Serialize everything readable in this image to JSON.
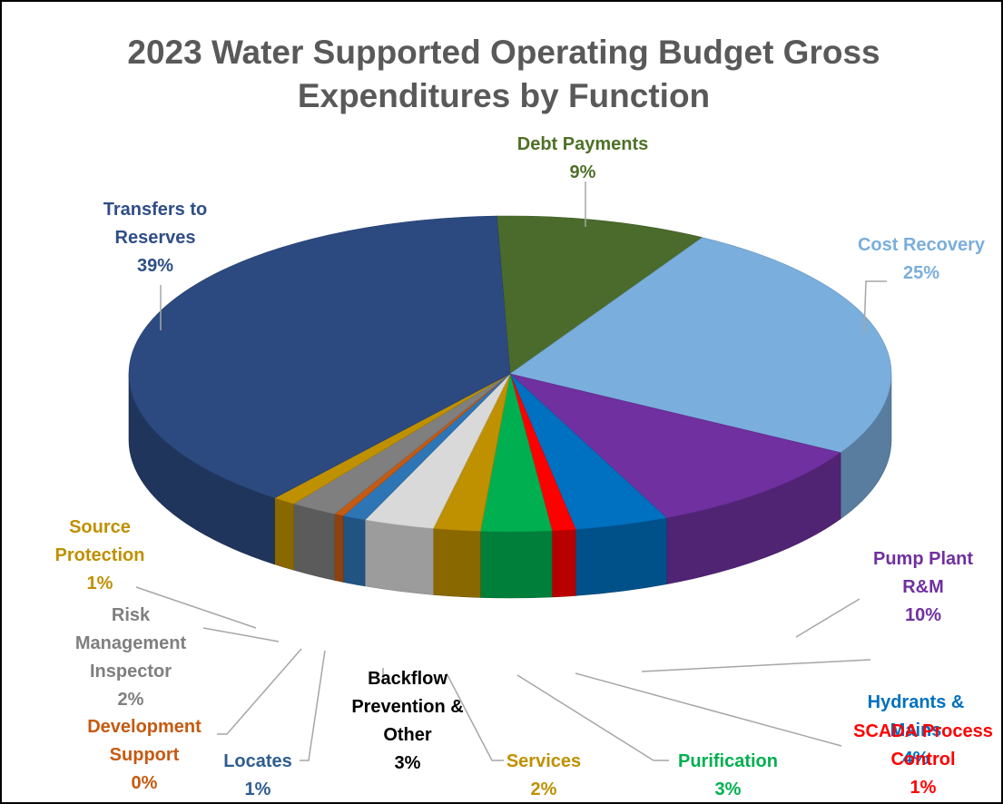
{
  "chart_data": {
    "type": "pie",
    "title": "2023 Water Supported Operating Budget Gross Expenditures by Function",
    "title_lines": [
      "2023 Water Supported Operating Budget Gross",
      "Expenditures by Function"
    ],
    "slices": [
      {
        "name": "Debt Payments",
        "label_lines": [
          "Debt Payments"
        ],
        "value": 9,
        "percent_label": "9%",
        "color": "#4a6b2b",
        "label_color": "#4e7126"
      },
      {
        "name": "Cost Recovery",
        "label_lines": [
          "Cost Recovery"
        ],
        "value": 25,
        "percent_label": "25%",
        "color": "#7aaedc",
        "label_color": "#7aaedc"
      },
      {
        "name": "Pump Plant R&M",
        "label_lines": [
          "Pump Plant",
          "R&M"
        ],
        "value": 10,
        "percent_label": "10%",
        "color": "#7030a0",
        "label_color": "#7030a0"
      },
      {
        "name": "Hydrants & Mains",
        "label_lines": [
          "Hydrants &",
          "Mains"
        ],
        "value": 4,
        "percent_label": "4%",
        "color": "#0070c0",
        "label_color": "#0070c0"
      },
      {
        "name": "SCADA Process Control",
        "label_lines": [
          "SCADA Process",
          "Control"
        ],
        "value": 1,
        "percent_label": "1%",
        "color": "#ff0000",
        "label_color": "#ff0000"
      },
      {
        "name": "Purification",
        "label_lines": [
          "Purification"
        ],
        "value": 3,
        "percent_label": "3%",
        "color": "#00b050",
        "label_color": "#00b050"
      },
      {
        "name": "Services",
        "label_lines": [
          "Services"
        ],
        "value": 2,
        "percent_label": "2%",
        "color": "#bf9000",
        "label_color": "#bf9000"
      },
      {
        "name": "Backflow Prevention & Other",
        "label_lines": [
          "Backflow",
          "Prevention &",
          "Other"
        ],
        "value": 3,
        "percent_label": "3%",
        "color": "#d9d9d9",
        "label_color": "#000000"
      },
      {
        "name": "Locates",
        "label_lines": [
          "Locates"
        ],
        "value": 1,
        "percent_label": "1%",
        "color": "#2e75b6",
        "label_color": "#2e5d8e"
      },
      {
        "name": "Development Support",
        "label_lines": [
          "Development",
          "Support"
        ],
        "value": 0.4,
        "percent_label": "0%",
        "color": "#c55a11",
        "label_color": "#c55a11"
      },
      {
        "name": "Risk Management Inspector",
        "label_lines": [
          "Risk",
          "Management",
          "Inspector"
        ],
        "value": 2,
        "percent_label": "2%",
        "color": "#7f7f7f",
        "label_color": "#7f7f7f"
      },
      {
        "name": "Source Protection",
        "label_lines": [
          "Source",
          "Protection"
        ],
        "value": 1,
        "percent_label": "1%",
        "color": "#bf9000",
        "label_color": "#bf9000"
      },
      {
        "name": "Transfers to Reserves",
        "label_lines": [
          "Transfers to",
          "Reserves"
        ],
        "value": 39,
        "percent_label": "39%",
        "color": "#2c4a80",
        "label_color": "#2f4e87"
      }
    ],
    "legend": "none",
    "style": "3d-pie"
  }
}
